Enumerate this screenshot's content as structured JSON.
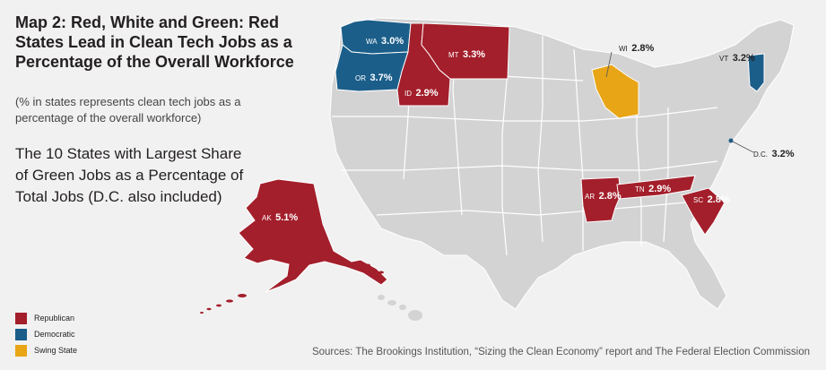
{
  "title": "Map 2: Red, White and Green: Red States Lead in Clean Tech Jobs as a Percentage of the Overall Workforce",
  "subtitle": "(% in states represents clean tech jobs as a percentage of the overall workforce)",
  "headline": "The 10 States with Largest Share of Green Jobs as a Percentage of Total Jobs (D.C. also included)",
  "legend": [
    {
      "label": "Republican",
      "color": "#a31f2b"
    },
    {
      "label": "Democratic",
      "color": "#1b5e8a"
    },
    {
      "label": "Swing State",
      "color": "#e8a516"
    }
  ],
  "colors": {
    "republican": "#a31f2b",
    "democratic": "#1b5e8a",
    "swing": "#e8a516",
    "other_states": "#d3d3d4",
    "border": "#ffffff"
  },
  "states": {
    "WA": {
      "abbr": "WA",
      "value": "3.0%",
      "party": "Democratic"
    },
    "OR": {
      "abbr": "OR",
      "value": "3.7%",
      "party": "Democratic"
    },
    "MT": {
      "abbr": "MT",
      "value": "3.3%",
      "party": "Republican"
    },
    "ID": {
      "abbr": "ID",
      "value": "2.9%",
      "party": "Republican"
    },
    "WI": {
      "abbr": "WI",
      "value": "2.8%",
      "party": "Swing State"
    },
    "VT": {
      "abbr": "VT",
      "value": "3.2%",
      "party": "Democratic"
    },
    "DC": {
      "abbr": "D.C.",
      "value": "3.2%",
      "party": "Democratic"
    },
    "AK": {
      "abbr": "AK",
      "value": "5.1%",
      "party": "Republican"
    },
    "AR": {
      "abbr": "AR",
      "value": "2.8%",
      "party": "Republican"
    },
    "TN": {
      "abbr": "TN",
      "value": "2.9%",
      "party": "Republican"
    },
    "SC": {
      "abbr": "SC",
      "value": "2.8%",
      "party": "Republican"
    }
  },
  "sources": "Sources: The Brookings Institution, “Sizing the Clean Economy” report and The Federal Election Commission"
}
